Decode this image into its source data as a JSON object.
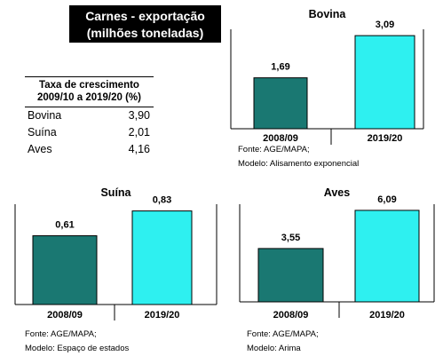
{
  "header": {
    "title_line1": "Carnes - exportação",
    "title_line2": "(milhões toneladas)"
  },
  "growth_table": {
    "header_line1": "Taxa de crescimento",
    "header_line2": "2009/10 a 2019/20 (%)",
    "rows": [
      {
        "label": "Bovina",
        "value": "3,90"
      },
      {
        "label": "Suína",
        "value": "2,01"
      },
      {
        "label": "Aves",
        "value": "4,16"
      }
    ]
  },
  "colors": {
    "bar_2008": "#1a7872",
    "bar_2019": "#2ef0f0"
  },
  "chart_data": [
    {
      "type": "bar",
      "title": "Bovina",
      "categories": [
        "2008/09",
        "2019/20"
      ],
      "values": [
        1.69,
        3.09
      ],
      "value_labels": [
        "1,69",
        "3,09"
      ],
      "ylim": [
        0,
        3.3
      ],
      "notes": [
        "Fonte: AGE/MAPA;",
        "Modelo: Alisamento exponencial"
      ]
    },
    {
      "type": "bar",
      "title": "Suína",
      "categories": [
        "2008/09",
        "2019/20"
      ],
      "values": [
        0.61,
        0.83
      ],
      "value_labels": [
        "0,61",
        "0,83"
      ],
      "ylim": [
        0,
        0.89
      ],
      "notes": [
        "Fonte: AGE/MAPA;",
        "Modelo: Espaço de estados"
      ]
    },
    {
      "type": "bar",
      "title": "Aves",
      "categories": [
        "2008/09",
        "2019/20"
      ],
      "values": [
        3.55,
        6.09
      ],
      "value_labels": [
        "3,55",
        "6,09"
      ],
      "ylim": [
        0,
        6.5
      ],
      "notes": [
        "Fonte: AGE/MAPA;",
        "Modelo: Arima"
      ]
    }
  ]
}
